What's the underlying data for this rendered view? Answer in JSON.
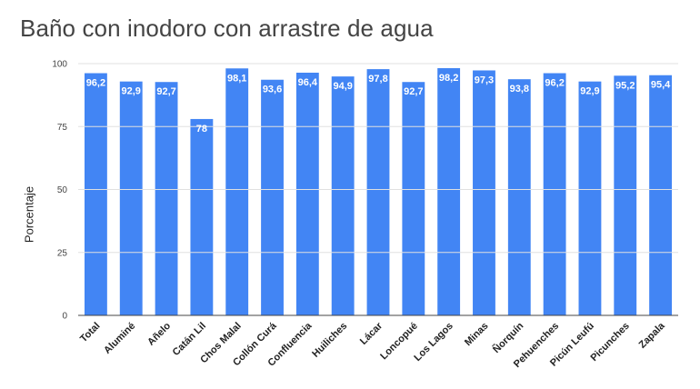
{
  "chart_data": {
    "type": "bar",
    "title": "Baño con inodoro con arrastre de agua",
    "xlabel": "",
    "ylabel": "Porcentaje",
    "ylim": [
      0,
      100
    ],
    "yticks": [
      0,
      25,
      50,
      75,
      100
    ],
    "grid": true,
    "legend": "none",
    "bar_color": "#4285f4",
    "categories": [
      "Total",
      "Aluminé",
      "Añelo",
      "Catán Lil",
      "Chos Malal",
      "Collón Curá",
      "Confluencia",
      "Huiliches",
      "Lácar",
      "Loncopué",
      "Los Lagos",
      "Minas",
      "Ñorquín",
      "Pehuenches",
      "Picún Leufú",
      "Picunches",
      "Zapala"
    ],
    "values": [
      96.2,
      92.9,
      92.7,
      78,
      98.1,
      93.6,
      96.4,
      94.9,
      97.8,
      92.7,
      98.2,
      97.3,
      93.8,
      96.2,
      92.9,
      95.2,
      95.4
    ],
    "value_labels": [
      "96,2",
      "92,9",
      "92,7",
      "78",
      "98,1",
      "93,6",
      "96,4",
      "94,9",
      "97,8",
      "92,7",
      "98,2",
      "97,3",
      "93,8",
      "96,2",
      "92,9",
      "95,2",
      "95,4"
    ]
  }
}
